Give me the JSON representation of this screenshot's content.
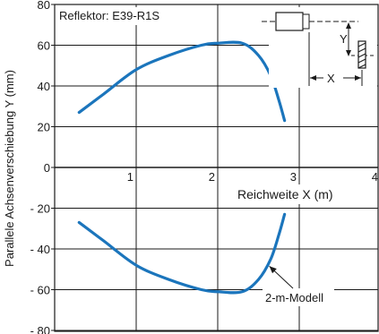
{
  "chart_data": {
    "type": "line",
    "inset_label": "Reflektor: E39-R1S",
    "ylabel": "Parallele Achsenverschiebung Y (mm)",
    "xlabel": "Reichweite X (m)",
    "xlim": [
      0,
      4
    ],
    "ylim": [
      -80,
      80
    ],
    "x_ticks": [
      "1",
      "2",
      "3",
      "4"
    ],
    "y_ticks": [
      "80",
      "60",
      "40",
      "20",
      "0",
      "- 20",
      "- 40",
      "- 60",
      "- 80"
    ],
    "grid": true,
    "series": [
      {
        "name": "2-m-Modell",
        "color": "#1b75bc",
        "points": [
          [
            0.3,
            27
          ],
          [
            0.6,
            36
          ],
          [
            1.0,
            48
          ],
          [
            1.4,
            55
          ],
          [
            1.8,
            60
          ],
          [
            2.0,
            61
          ],
          [
            2.3,
            61
          ],
          [
            2.5,
            55
          ],
          [
            2.65,
            45
          ],
          [
            2.75,
            33
          ],
          [
            2.82,
            23
          ]
        ],
        "mirror": true
      }
    ],
    "annotation": {
      "text": "2-m-Modell",
      "points_to": [
        2.6,
        -48
      ]
    },
    "diagram": {
      "x_label": "X",
      "y_label": "Y"
    }
  }
}
